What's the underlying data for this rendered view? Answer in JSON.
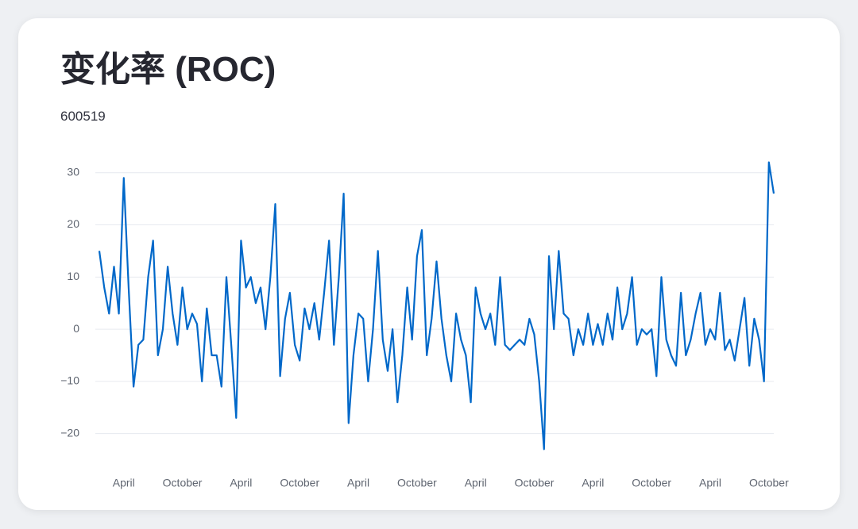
{
  "chart_data": {
    "type": "line",
    "title": "变化率 (ROC)",
    "subtitle": "600519",
    "categories": [
      null,
      null,
      null,
      null,
      null,
      "April",
      null,
      null,
      null,
      null,
      null,
      null,
      null,
      null,
      null,
      null,
      null,
      "October",
      null,
      null,
      null,
      null,
      null,
      null,
      null,
      null,
      null,
      null,
      null,
      "April",
      null,
      null,
      null,
      null,
      null,
      null,
      null,
      null,
      null,
      null,
      null,
      "October",
      null,
      null,
      null,
      null,
      null,
      null,
      null,
      null,
      null,
      null,
      null,
      "April",
      null,
      null,
      null,
      null,
      null,
      null,
      null,
      null,
      null,
      null,
      null,
      "October",
      null,
      null,
      null,
      null,
      null,
      null,
      null,
      null,
      null,
      null,
      null,
      "April",
      null,
      null,
      null,
      null,
      null,
      null,
      null,
      null,
      null,
      null,
      null,
      "October",
      null,
      null,
      null,
      null,
      null,
      null,
      null,
      null,
      null,
      null,
      null,
      "April",
      null,
      null,
      null,
      null,
      null,
      null,
      null,
      null,
      null,
      null,
      null,
      "October",
      null,
      null,
      null,
      null,
      null,
      null,
      null,
      null,
      null,
      null,
      null,
      "April",
      null,
      null,
      null,
      null,
      null,
      null,
      null,
      null,
      null,
      null,
      null,
      "October",
      null
    ],
    "values": [
      15,
      8,
      3,
      12,
      3,
      29,
      8,
      -11,
      -3,
      -2,
      10,
      17,
      -5,
      0,
      12,
      3,
      -3,
      8,
      0,
      3,
      1,
      -10,
      4,
      -5,
      -5,
      -11,
      10,
      -3,
      -17,
      17,
      8,
      10,
      5,
      8,
      0,
      10,
      24,
      -9,
      2,
      7,
      -3,
      -6,
      4,
      0,
      5,
      -2,
      7,
      17,
      -3,
      10,
      26,
      -18,
      -5,
      3,
      2,
      -10,
      0,
      15,
      -2,
      -8,
      0,
      -14,
      -5,
      8,
      -2,
      14,
      19,
      -5,
      2,
      13,
      2,
      -5,
      -10,
      3,
      -2,
      -5,
      -14,
      8,
      3,
      0,
      3,
      -3,
      10,
      -3,
      -4,
      -3,
      -2,
      -3,
      2,
      -1,
      -10,
      -23,
      14,
      0,
      15,
      3,
      2,
      -5,
      0,
      -3,
      3,
      -3,
      1,
      -3,
      3,
      -2,
      8,
      0,
      3,
      10,
      -3,
      0,
      -1,
      0,
      -9,
      10,
      -2,
      -5,
      -7,
      7,
      -5,
      -2,
      3,
      7,
      -3,
      0,
      -2,
      7,
      -4,
      -2,
      -6,
      0,
      6,
      -7,
      2,
      -2,
      -10,
      32,
      26
    ],
    "color": "#0068c9",
    "ylim": [
      -24,
      33
    ],
    "yticks": [
      {
        "value": -20,
        "label": "−20"
      },
      {
        "value": -10,
        "label": "−10"
      },
      0,
      10,
      20,
      30
    ],
    "grid": true
  }
}
